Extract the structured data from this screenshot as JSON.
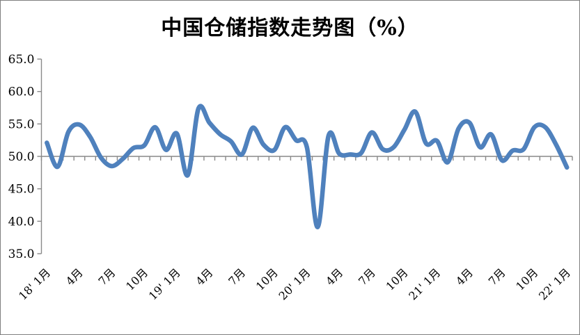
{
  "title": "中国仓储指数走势图（%）",
  "chart_data": {
    "type": "line",
    "title": "中国仓储指数走势图（%）",
    "legend": "none",
    "grid": "off",
    "smooth_line": true,
    "line_color": "#4F81BD",
    "axis_color": "#898989",
    "y_axis": {
      "min": 35,
      "max": 65,
      "step": 5,
      "tick_labels": [
        "65.0",
        "60.0",
        "55.0",
        "50.0",
        "45.0",
        "40.0",
        "35.0"
      ],
      "category_axis_crosses_at": 50
    },
    "x_axis": {
      "n_points": 49,
      "months_per_tick_label": 3,
      "tick_labels": [
        "18' 1月",
        "4月",
        "7月",
        "10月",
        "19' 1月",
        "4月",
        "7月",
        "10月",
        "20' 1月",
        "4月",
        "7月",
        "10月",
        "21' 1月",
        "4月",
        "7月",
        "10月",
        "22' 1月"
      ],
      "label_rotation_deg": -45
    },
    "series": [
      {
        "name": "中国仓储指数",
        "x_months": [
          "2018-01",
          "2018-02",
          "2018-03",
          "2018-04",
          "2018-05",
          "2018-06",
          "2018-07",
          "2018-08",
          "2018-09",
          "2018-10",
          "2018-11",
          "2018-12",
          "2019-01",
          "2019-02",
          "2019-03",
          "2019-04",
          "2019-05",
          "2019-06",
          "2019-07",
          "2019-08",
          "2019-09",
          "2019-10",
          "2019-11",
          "2019-12",
          "2020-01",
          "2020-02",
          "2020-03",
          "2020-04",
          "2020-05",
          "2020-06",
          "2020-07",
          "2020-08",
          "2020-09",
          "2020-10",
          "2020-11",
          "2020-12",
          "2021-01",
          "2021-02",
          "2021-03",
          "2021-04",
          "2021-05",
          "2021-06",
          "2021-07",
          "2021-08",
          "2021-09",
          "2021-10",
          "2021-11",
          "2021-12",
          "2022-01"
        ],
        "values": [
          52.1,
          48.4,
          53.8,
          54.9,
          53.0,
          49.8,
          48.5,
          49.6,
          51.3,
          51.7,
          54.5,
          51.0,
          53.5,
          47.1,
          57.4,
          55.2,
          53.4,
          52.3,
          50.3,
          54.4,
          51.8,
          51.0,
          54.5,
          52.5,
          51.4,
          39.1,
          53.2,
          50.4,
          50.3,
          50.5,
          53.7,
          51.1,
          51.4,
          54.1,
          56.9,
          52.0,
          52.4,
          49.1,
          54.3,
          55.2,
          51.4,
          53.4,
          49.4,
          50.9,
          51.1,
          54.5,
          54.5,
          51.8,
          48.3
        ]
      }
    ]
  }
}
